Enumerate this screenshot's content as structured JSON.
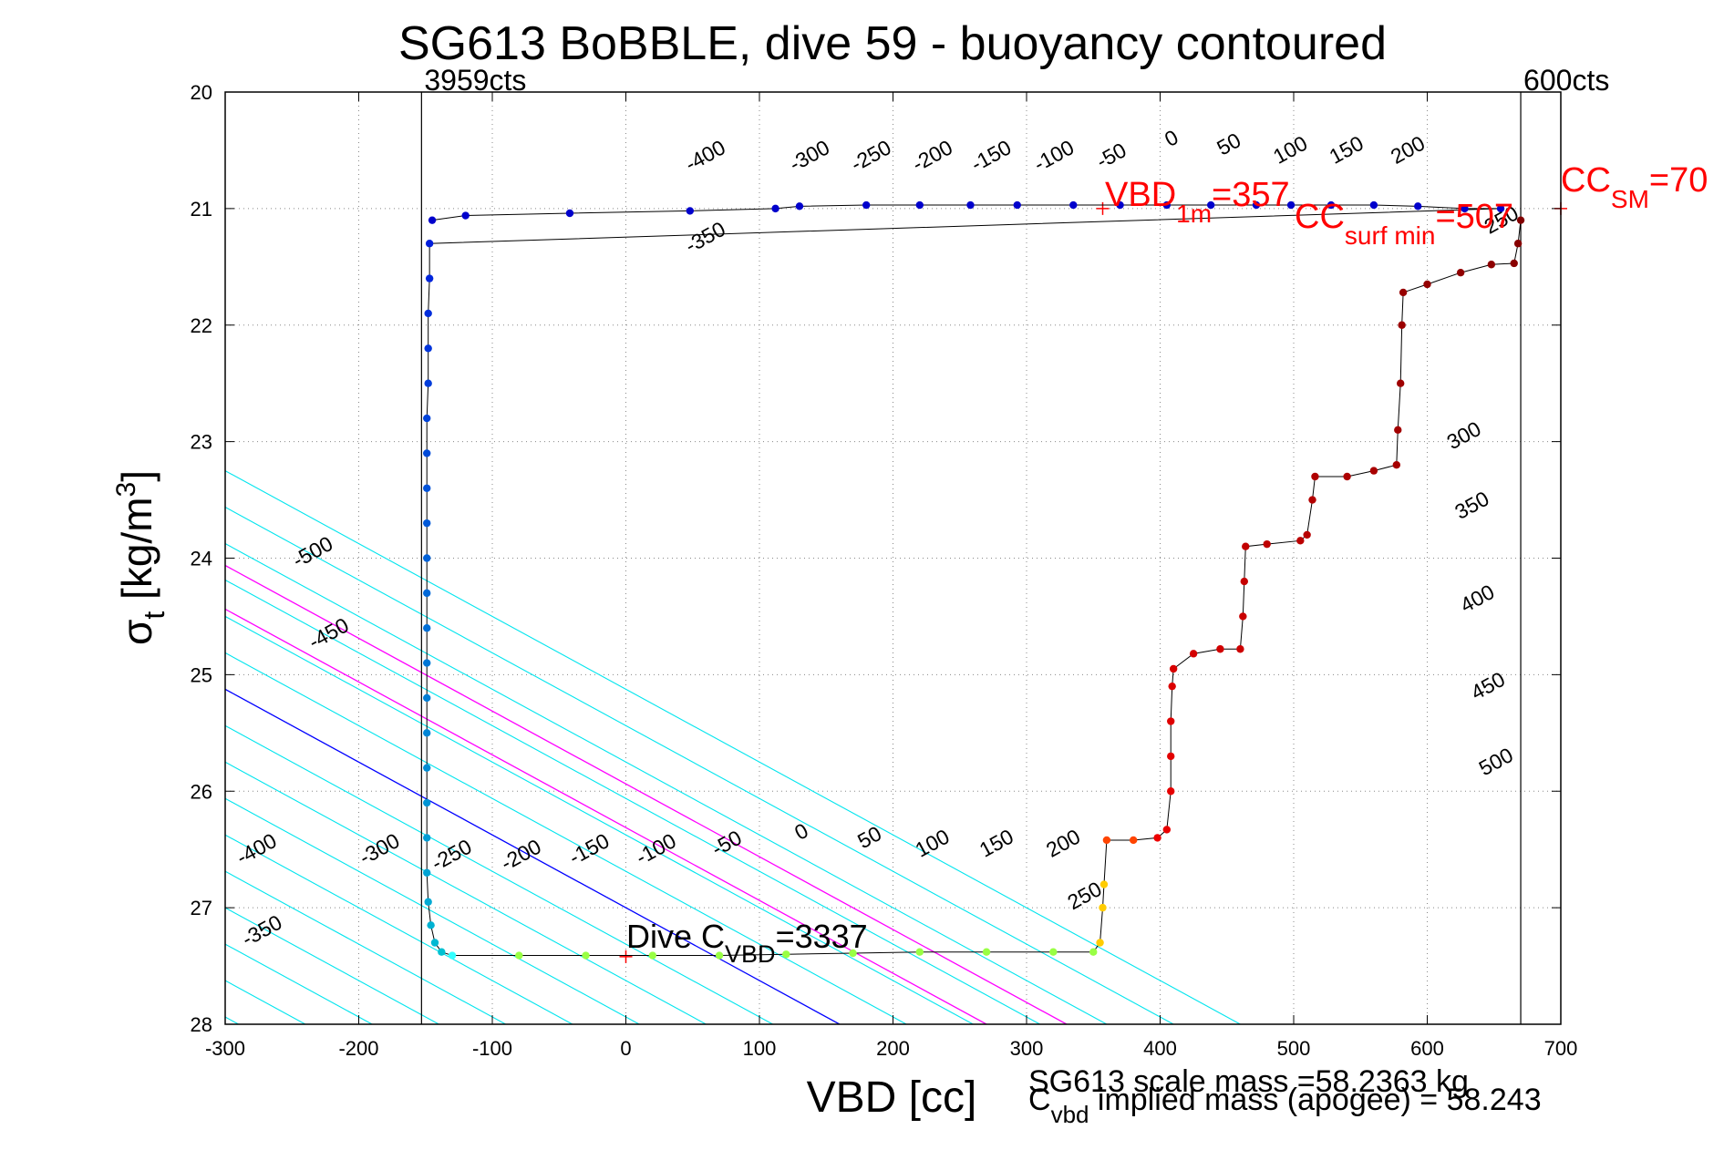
{
  "chart_data": {
    "type": "scatter",
    "title": "SG613 BoBBLE, dive 59 - buoyancy contoured",
    "xlabel": "VBD [cc]",
    "ylabel": {
      "main": "σ",
      "sub": "t",
      "unit": " [kg/m",
      "sup": "3",
      "close": "]"
    },
    "xlim": [
      -300,
      700
    ],
    "ylim": [
      20,
      28
    ],
    "y_reversed": true,
    "grid": true,
    "x_ticks": [
      -300,
      -200,
      -100,
      0,
      100,
      200,
      300,
      400,
      500,
      600,
      700
    ],
    "y_ticks": [
      20,
      21,
      22,
      23,
      24,
      25,
      26,
      27,
      28
    ],
    "x_tick_labels": [
      "-300",
      "-200",
      "-100",
      "0",
      "100",
      "200",
      "300",
      "400",
      "500",
      "600",
      "700"
    ],
    "y_tick_labels": [
      "20",
      "21",
      "22",
      "23",
      "24",
      "25",
      "26",
      "27",
      "28"
    ],
    "colors": {
      "isoline": "#00e5ee",
      "zero_line": "#0000ff",
      "magenta_line": "#ff00ff",
      "annotation": "#ff0000",
      "profile_line": "#000000"
    },
    "vertical_lines": [
      {
        "x": -153,
        "label": "3959cts"
      },
      {
        "x": 670,
        "label": "600cts"
      }
    ],
    "iso_buoyancy": {
      "slope_cc_per_sigma": 160,
      "values_at_sigma_27": [
        -800,
        -750,
        -700,
        -650,
        -600,
        -550,
        -500,
        -450,
        -400,
        -350,
        -300,
        -250,
        -200,
        -150,
        -100,
        -50,
        0,
        50,
        100,
        150,
        200,
        250,
        300
      ],
      "special": [
        {
          "value_at_sigma_27": 0,
          "color": "zero"
        }
      ]
    },
    "magenta_lines_at_sigma_27": [
      110,
      170
    ],
    "iso_labels": {
      "upper": [
        {
          "x": 62,
          "y": 20.6,
          "text": "-400"
        },
        {
          "x": 140,
          "y": 20.6,
          "text": "-300"
        },
        {
          "x": 186,
          "y": 20.6,
          "text": "-250"
        },
        {
          "x": 232,
          "y": 20.6,
          "text": "-200"
        },
        {
          "x": 276,
          "y": 20.6,
          "text": "-150"
        },
        {
          "x": 323,
          "y": 20.6,
          "text": "-100"
        },
        {
          "x": 366,
          "y": 20.6,
          "text": "-50"
        },
        {
          "x": 411,
          "y": 20.45,
          "text": "0"
        },
        {
          "x": 454,
          "y": 20.5,
          "text": "50"
        },
        {
          "x": 500,
          "y": 20.55,
          "text": "100"
        },
        {
          "x": 542,
          "y": 20.55,
          "text": "150"
        },
        {
          "x": 588,
          "y": 20.55,
          "text": "200"
        },
        {
          "x": 658,
          "y": 21.15,
          "text": "250"
        },
        {
          "x": 62,
          "y": 21.3,
          "text": "-350"
        },
        {
          "x": 630,
          "y": 23.0,
          "text": "300"
        },
        {
          "x": 636,
          "y": 23.6,
          "text": "350"
        },
        {
          "x": 640,
          "y": 24.4,
          "text": "400"
        },
        {
          "x": 648,
          "y": 25.15,
          "text": "450"
        },
        {
          "x": 654,
          "y": 25.8,
          "text": "500"
        }
      ],
      "lower": [
        {
          "x": -232,
          "y": 24.0,
          "text": "-500"
        },
        {
          "x": -220,
          "y": 24.7,
          "text": "-450"
        },
        {
          "x": -274,
          "y": 26.55,
          "text": "-400"
        },
        {
          "x": -182,
          "y": 26.55,
          "text": "-300"
        },
        {
          "x": -128,
          "y": 26.6,
          "text": "-250"
        },
        {
          "x": -76,
          "y": 26.6,
          "text": "-200"
        },
        {
          "x": -25,
          "y": 26.55,
          "text": "-150"
        },
        {
          "x": 25,
          "y": 26.55,
          "text": "-100"
        },
        {
          "x": 78,
          "y": 26.5,
          "text": "-50"
        },
        {
          "x": 134,
          "y": 26.4,
          "text": "0"
        },
        {
          "x": 185,
          "y": 26.45,
          "text": "50"
        },
        {
          "x": 232,
          "y": 26.5,
          "text": "100"
        },
        {
          "x": 280,
          "y": 26.5,
          "text": "150"
        },
        {
          "x": 330,
          "y": 26.5,
          "text": "200"
        },
        {
          "x": 346,
          "y": 26.95,
          "text": "250"
        },
        {
          "x": -270,
          "y": 27.25,
          "text": "-350"
        }
      ]
    },
    "annotations": {
      "vbd_1m": {
        "main": "VBD",
        "sub": "1m",
        "tail": "=357",
        "marker_x": 357,
        "marker_y": 21.0
      },
      "cc_surf_min": {
        "main": "CC",
        "sub": "surf min",
        "tail": "=507"
      },
      "cc_sm": {
        "main": "CC",
        "sub": "SM",
        "tail": "=70",
        "marker_x": 700,
        "marker_y": 21.0
      },
      "dive_c_vbd": {
        "main": "Dive C",
        "sub": "VBD",
        "tail": "=3337",
        "marker_x": 0,
        "marker_y": 27.42
      },
      "scale_mass": "SG613 scale mass =58.2363 kg",
      "implied_mass": {
        "main": "C",
        "sub": "vbd",
        "tail": " implied mass (apogee) = 58.243"
      }
    },
    "descent_points": [
      [
        -145,
        21.1
      ],
      [
        -120,
        21.06
      ],
      [
        -42,
        21.04
      ],
      [
        48,
        21.02
      ],
      [
        112,
        21.0
      ],
      [
        130,
        20.98
      ],
      [
        180,
        20.97
      ],
      [
        220,
        20.97
      ],
      [
        258,
        20.97
      ],
      [
        293,
        20.97
      ],
      [
        335,
        20.97
      ],
      [
        370,
        20.97
      ],
      [
        405,
        20.97
      ],
      [
        438,
        20.97
      ],
      [
        472,
        20.97
      ],
      [
        498,
        20.97
      ],
      [
        528,
        20.97
      ],
      [
        560,
        20.97
      ],
      [
        593,
        20.98
      ],
      [
        628,
        21.0
      ],
      [
        655,
        21.0
      ],
      [
        -147,
        21.3
      ],
      [
        -147,
        21.6
      ],
      [
        -148,
        21.9
      ],
      [
        -148,
        22.2
      ],
      [
        -148,
        22.5
      ],
      [
        -149,
        22.8
      ],
      [
        -149,
        23.1
      ],
      [
        -149,
        23.4
      ],
      [
        -149,
        23.7
      ],
      [
        -149,
        24.0
      ],
      [
        -149,
        24.3
      ],
      [
        -149,
        24.6
      ],
      [
        -149,
        24.9
      ],
      [
        -149,
        25.2
      ],
      [
        -149,
        25.5
      ],
      [
        -149,
        25.8
      ],
      [
        -149,
        26.1
      ],
      [
        -149,
        26.4
      ],
      [
        -149,
        26.7
      ],
      [
        -148,
        26.95
      ],
      [
        -146,
        27.15
      ],
      [
        -143,
        27.3
      ],
      [
        -138,
        27.38
      ]
    ],
    "bottom_points": [
      [
        -130,
        27.41
      ],
      [
        -80,
        27.41
      ],
      [
        -30,
        27.41
      ],
      [
        20,
        27.41
      ],
      [
        70,
        27.41
      ],
      [
        120,
        27.4
      ],
      [
        170,
        27.39
      ],
      [
        220,
        27.38
      ],
      [
        270,
        27.38
      ],
      [
        320,
        27.38
      ],
      [
        350,
        27.38
      ]
    ],
    "ascent_points": [
      [
        355,
        27.3
      ],
      [
        357,
        27.0
      ],
      [
        358,
        26.8
      ],
      [
        360,
        26.42
      ],
      [
        380,
        26.42
      ],
      [
        398,
        26.4
      ],
      [
        405,
        26.33
      ],
      [
        408,
        26.0
      ],
      [
        408,
        25.7
      ],
      [
        408,
        25.4
      ],
      [
        409,
        25.1
      ],
      [
        410,
        24.95
      ],
      [
        425,
        24.82
      ],
      [
        445,
        24.78
      ],
      [
        460,
        24.78
      ],
      [
        462,
        24.5
      ],
      [
        463,
        24.2
      ],
      [
        464,
        23.9
      ],
      [
        480,
        23.88
      ],
      [
        505,
        23.85
      ],
      [
        510,
        23.8
      ],
      [
        514,
        23.5
      ],
      [
        516,
        23.3
      ],
      [
        540,
        23.3
      ],
      [
        560,
        23.25
      ],
      [
        577,
        23.2
      ],
      [
        578,
        22.9
      ],
      [
        580,
        22.5
      ],
      [
        581,
        22.0
      ],
      [
        582,
        21.72
      ],
      [
        600,
        21.65
      ],
      [
        625,
        21.55
      ],
      [
        648,
        21.48
      ],
      [
        665,
        21.47
      ],
      [
        668,
        21.3
      ],
      [
        670,
        21.1
      ]
    ]
  }
}
